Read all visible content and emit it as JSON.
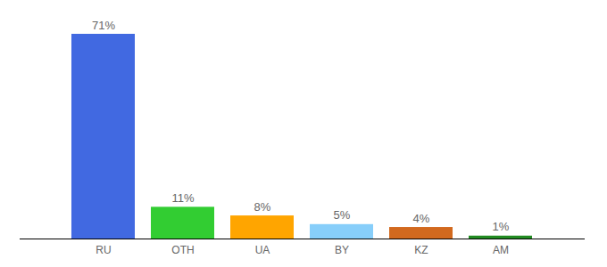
{
  "chart_data": {
    "type": "bar",
    "categories": [
      "RU",
      "OTH",
      "UA",
      "BY",
      "KZ",
      "AM"
    ],
    "values": [
      71,
      11,
      8,
      5,
      4,
      1
    ],
    "value_labels": [
      "71%",
      "11%",
      "8%",
      "5%",
      "4%",
      "1%"
    ],
    "colors": [
      "#4169e1",
      "#32cd32",
      "#ffa500",
      "#87cefa",
      "#d2691e",
      "#228b22"
    ],
    "ylim": [
      0,
      71
    ],
    "data_labels": true,
    "tick_labels": "x",
    "grid": false
  }
}
